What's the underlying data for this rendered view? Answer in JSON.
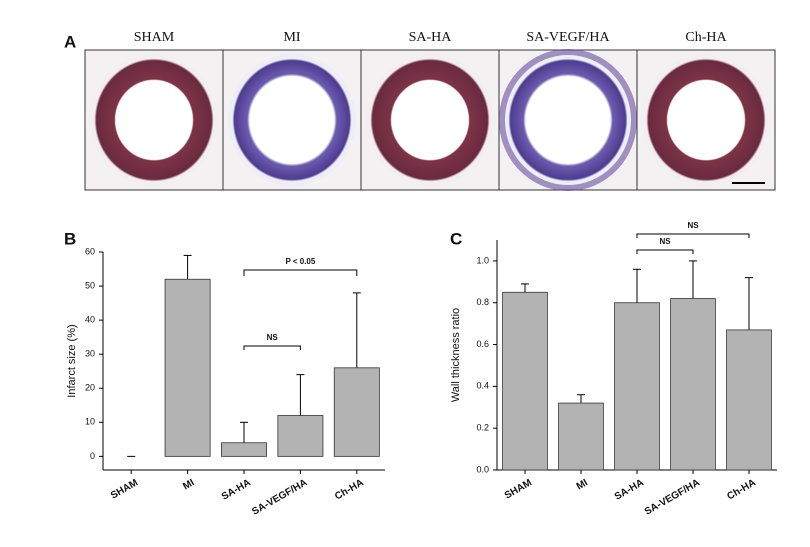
{
  "panel_a": {
    "label": "A",
    "images": [
      "SHAM",
      "MI",
      "SA-HA",
      "SA-VEGF/HA",
      "Ch-HA"
    ]
  },
  "chart_data": [
    {
      "type": "bar",
      "label": "B",
      "y_label": "Infarct size (%)",
      "categories": [
        "SHAM",
        "MI",
        "SA-HA",
        "SA-VEGF/HA",
        "Ch-HA"
      ],
      "values": [
        0,
        52,
        4,
        12,
        26
      ],
      "errors": [
        0,
        7,
        6,
        12,
        22
      ],
      "color": "#b3b3b3",
      "ylim": [
        -4,
        60
      ],
      "yticks": [
        0,
        10,
        20,
        30,
        40,
        50,
        60
      ],
      "annotations": [
        "NS",
        "P < 0.05"
      ]
    },
    {
      "type": "bar",
      "label": "C",
      "y_label": "Wall thickness ratio",
      "categories": [
        "SHAM",
        "MI",
        "SA-HA",
        "SA-VEGF/HA",
        "Ch-HA"
      ],
      "values": [
        0.85,
        0.32,
        0.8,
        0.82,
        0.67
      ],
      "errors": [
        0.04,
        0.04,
        0.16,
        0.18,
        0.25
      ],
      "color": "#b3b3b3",
      "ylim": [
        0,
        1.1
      ],
      "yticks": [
        {
          "value": 0,
          "label": "0.0"
        },
        0.2,
        0.4,
        0.6,
        0.8,
        {
          "value": 1,
          "label": "1.0"
        }
      ],
      "annotations": [
        "NS",
        "NS"
      ]
    }
  ]
}
